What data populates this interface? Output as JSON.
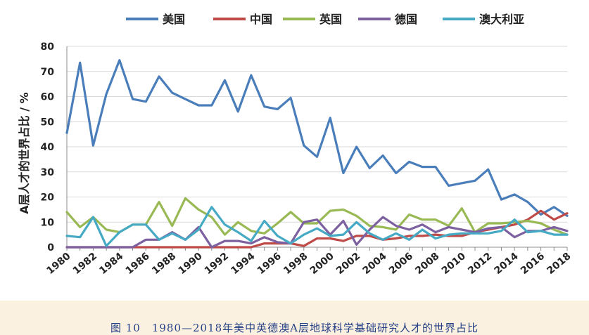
{
  "chart_data": {
    "type": "line",
    "title": "",
    "xlabel": "",
    "ylabel": "A层人才的世界占比 / %",
    "ylim": [
      0,
      80
    ],
    "yticks": [
      0,
      10,
      20,
      30,
      40,
      50,
      60,
      70,
      80
    ],
    "grid": "horizontal",
    "legend": "top",
    "x": [
      1980,
      1981,
      1982,
      1983,
      1984,
      1985,
      1986,
      1987,
      1988,
      1989,
      1990,
      1991,
      1992,
      1993,
      1994,
      1995,
      1996,
      1997,
      1998,
      1999,
      2000,
      2001,
      2002,
      2003,
      2004,
      2005,
      2006,
      2007,
      2008,
      2009,
      2010,
      2011,
      2012,
      2013,
      2014,
      2015,
      2016,
      2017,
      2018
    ],
    "xtick_labels": [
      "1980",
      "1982",
      "1984",
      "1986",
      "1988",
      "1990",
      "1992",
      "1994",
      "1996",
      "1998",
      "2000",
      "2002",
      "2004",
      "2006",
      "2008",
      "2010",
      "2012",
      "2014",
      "2016",
      "2018"
    ],
    "series": [
      {
        "name": "美国",
        "color": "#4a7ebb",
        "values": [
          45.5,
          73.5,
          40.5,
          61,
          74.5,
          59,
          58,
          68,
          61.5,
          59,
          56.5,
          56.5,
          66.5,
          54,
          68.5,
          56,
          55,
          59.5,
          40.5,
          36,
          51.5,
          29.5,
          40,
          31.5,
          36.5,
          29.5,
          34,
          32,
          32,
          24.5,
          25.5,
          26.5,
          31,
          19,
          21,
          18,
          13,
          16,
          12.5
        ]
      },
      {
        "name": "中国",
        "color": "#be4b48",
        "values": [
          0,
          0,
          0,
          0,
          0,
          0,
          0,
          0,
          0,
          0,
          0,
          0,
          0,
          0,
          0,
          1.5,
          1.5,
          1.5,
          0.5,
          3.5,
          3.5,
          2.5,
          4.5,
          4.5,
          3,
          3.5,
          4.5,
          4.5,
          5,
          4.5,
          4.5,
          6,
          7,
          8,
          9,
          11,
          14.5,
          11,
          13.5
        ]
      },
      {
        "name": "英国",
        "color": "#98b954",
        "values": [
          14,
          8,
          12,
          7,
          6,
          9,
          9,
          18,
          8.5,
          19.5,
          15,
          12,
          5,
          10,
          6.5,
          5.5,
          9.5,
          14,
          9.5,
          9.5,
          14.5,
          15,
          12.5,
          8.5,
          8,
          7,
          13,
          11,
          11,
          8.5,
          15.5,
          6,
          9.5,
          9.5,
          10,
          10.5,
          9.5,
          7,
          5
        ]
      },
      {
        "name": "德国",
        "color": "#7d60a0",
        "values": [
          0,
          0,
          0,
          0,
          0,
          0,
          3,
          3,
          6,
          3,
          8,
          0,
          2.5,
          2.5,
          1.5,
          4,
          2,
          1.5,
          10,
          11,
          5,
          10.5,
          1,
          7,
          12,
          8.5,
          7,
          9,
          6,
          8,
          7,
          6,
          7.5,
          8,
          4,
          6.5,
          6.5,
          8,
          6.5
        ]
      },
      {
        "name": "澳大利亚",
        "color": "#46aac5",
        "values": [
          4.5,
          4,
          12,
          0.5,
          6,
          9,
          9,
          3,
          5.5,
          3,
          7,
          16,
          9,
          6,
          2.5,
          10.5,
          4.5,
          1.5,
          5,
          7.5,
          4.5,
          5,
          10,
          5.5,
          3,
          5.5,
          3,
          7,
          3.5,
          5,
          5.5,
          5.5,
          5.5,
          6.5,
          11,
          6,
          6.5,
          5,
          5
        ]
      }
    ]
  },
  "caption": "图 10　1980—2018年美中英德澳A层地球科学基础研究人才的世界占比"
}
